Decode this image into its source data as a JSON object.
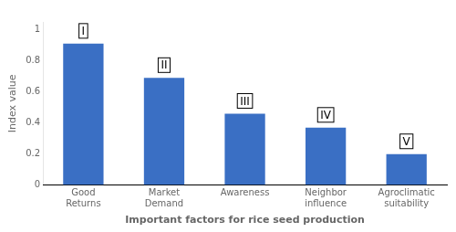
{
  "chart_data": {
    "type": "bar",
    "categories": [
      "Good\nReturns",
      "Market\nDemand",
      "Awareness",
      "Neighbor\ninfluence",
      "Agroclimatic\nsuitability"
    ],
    "values": [
      0.91,
      0.69,
      0.46,
      0.37,
      0.2
    ],
    "annotations": [
      "I",
      "II",
      "III",
      "IV",
      "V"
    ],
    "color": "#3A6FC4",
    "xlabel": "Important factors for rice seed production",
    "ylabel": "Index value",
    "ylim": [
      0,
      1.05
    ],
    "yticks": [
      0,
      0.2,
      0.4,
      0.6,
      0.8,
      1
    ],
    "grid": false
  }
}
